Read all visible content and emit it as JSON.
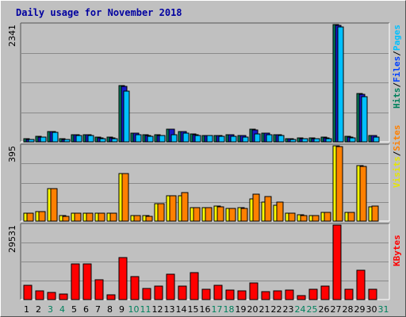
{
  "window": {
    "title": "Daily usage for November 2018"
  },
  "colors": {
    "background": "#c0c0c0",
    "panel": "#c0c0c0",
    "grid": "#8a8a8a",
    "title": "#0000a0",
    "hits": "#00805c",
    "files": "#0040ff",
    "pages": "#00c0ff",
    "visits": "#ffff00",
    "sites": "#ff8000",
    "kbytes": "#ff0000",
    "weekday_label": "#000000",
    "weekend_label": "#00805c"
  },
  "chart_data": [
    {
      "type": "bar",
      "name": "hits-files-pages",
      "categories": [
        "1",
        "2",
        "3",
        "4",
        "5",
        "6",
        "7",
        "8",
        "9",
        "10",
        "11",
        "12",
        "13",
        "14",
        "15",
        "16",
        "17",
        "18",
        "19",
        "20",
        "21",
        "22",
        "23",
        "24",
        "25",
        "26",
        "27",
        "28",
        "29",
        "30",
        "31"
      ],
      "ylim": [
        0,
        2341
      ],
      "ymax_label": "2341",
      "legend": [
        {
          "text": "Hits",
          "color": "#00805c"
        },
        {
          "text": "/",
          "color": "#000000"
        },
        {
          "text": "Files",
          "color": "#0040ff"
        },
        {
          "text": "/",
          "color": "#000000"
        },
        {
          "text": "Pages",
          "color": "#00c0ff"
        }
      ],
      "series": [
        {
          "name": "Hits",
          "color": "#00805c",
          "values": [
            60,
            110,
            210,
            60,
            150,
            150,
            90,
            90,
            1120,
            180,
            140,
            140,
            260,
            210,
            160,
            130,
            130,
            150,
            130,
            250,
            180,
            150,
            70,
            80,
            80,
            90,
            2341,
            110,
            970,
            130,
            0
          ]
        },
        {
          "name": "Files",
          "color": "#1818c8",
          "values": [
            55,
            100,
            200,
            55,
            140,
            140,
            80,
            80,
            1100,
            170,
            120,
            130,
            250,
            200,
            150,
            120,
            120,
            140,
            120,
            240,
            170,
            140,
            60,
            70,
            70,
            80,
            2320,
            100,
            950,
            120,
            0
          ]
        },
        {
          "name": "Pages",
          "color": "#00c0ff",
          "values": [
            50,
            90,
            190,
            50,
            130,
            130,
            70,
            70,
            1020,
            150,
            110,
            120,
            150,
            170,
            130,
            120,
            110,
            110,
            90,
            160,
            140,
            120,
            50,
            60,
            60,
            70,
            2300,
            80,
            900,
            100,
            0
          ]
        }
      ]
    },
    {
      "type": "bar",
      "name": "visits-sites",
      "categories": [
        "1",
        "2",
        "3",
        "4",
        "5",
        "6",
        "7",
        "8",
        "9",
        "10",
        "11",
        "12",
        "13",
        "14",
        "15",
        "16",
        "17",
        "18",
        "19",
        "20",
        "21",
        "22",
        "23",
        "24",
        "25",
        "26",
        "27",
        "28",
        "29",
        "30",
        "31"
      ],
      "ylim": [
        0,
        395
      ],
      "ymax_label": "395",
      "legend": [
        {
          "text": "Visits",
          "color": "#e6e600"
        },
        {
          "text": "/",
          "color": "#000000"
        },
        {
          "text": "Sites",
          "color": "#ff8000"
        }
      ],
      "series": [
        {
          "name": "Visits",
          "color": "#ffff00",
          "values": [
            40,
            50,
            170,
            30,
            40,
            40,
            40,
            40,
            250,
            30,
            30,
            90,
            135,
            135,
            70,
            70,
            80,
            65,
            70,
            115,
            100,
            85,
            40,
            35,
            30,
            45,
            395,
            45,
            290,
            75,
            0
          ]
        },
        {
          "name": "Sites",
          "color": "#ff8000",
          "values": [
            40,
            50,
            170,
            25,
            40,
            40,
            40,
            40,
            250,
            30,
            25,
            90,
            135,
            150,
            70,
            70,
            75,
            65,
            65,
            140,
            130,
            100,
            40,
            30,
            30,
            45,
            390,
            45,
            285,
            80,
            0
          ]
        }
      ]
    },
    {
      "type": "bar",
      "name": "kbytes",
      "categories": [
        "1",
        "2",
        "3",
        "4",
        "5",
        "6",
        "7",
        "8",
        "9",
        "10",
        "11",
        "12",
        "13",
        "14",
        "15",
        "16",
        "17",
        "18",
        "19",
        "20",
        "21",
        "22",
        "23",
        "24",
        "25",
        "26",
        "27",
        "28",
        "29",
        "30",
        "31"
      ],
      "ylim": [
        0,
        29531
      ],
      "ymax_label": "29531",
      "legend": [
        {
          "text": "KBytes",
          "color": "#ff0000"
        }
      ],
      "series": [
        {
          "name": "KBytes",
          "color": "#ff0000",
          "values": [
            5800,
            3500,
            2800,
            2300,
            14000,
            14000,
            8000,
            2000,
            16500,
            9000,
            4500,
            5200,
            10200,
            5300,
            10700,
            4000,
            5500,
            3800,
            3500,
            6500,
            3000,
            3500,
            3800,
            1500,
            4000,
            5200,
            29531,
            4200,
            11500,
            4200,
            0
          ]
        }
      ]
    }
  ],
  "x_labels": {
    "days": [
      "1",
      "2",
      "3",
      "4",
      "5",
      "6",
      "7",
      "8",
      "9",
      "10",
      "11",
      "12",
      "13",
      "14",
      "15",
      "16",
      "17",
      "18",
      "19",
      "20",
      "21",
      "22",
      "23",
      "24",
      "25",
      "26",
      "27",
      "28",
      "29",
      "30",
      "31"
    ],
    "weekend_days": [
      "3",
      "4",
      "10",
      "11",
      "17",
      "18",
      "24",
      "25",
      "31"
    ]
  }
}
